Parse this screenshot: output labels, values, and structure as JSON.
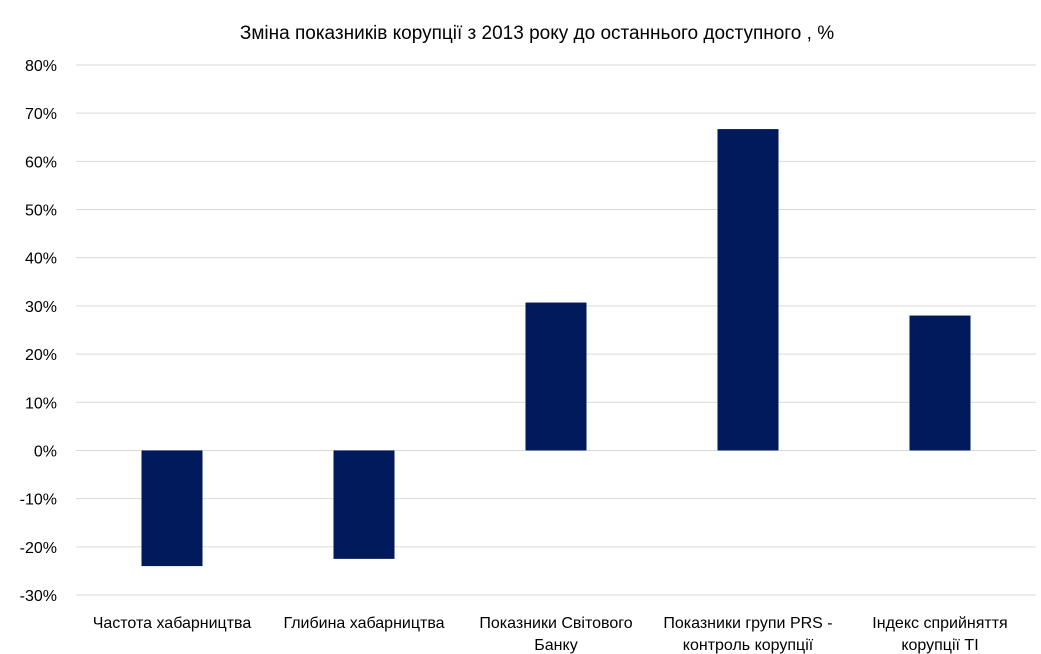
{
  "chart_data": {
    "type": "bar",
    "title": "Зміна показників корупції з 2013 року до останнього доступного , %",
    "xlabel": "",
    "ylabel": "",
    "ylim": [
      -30,
      80
    ],
    "yticks": [
      80,
      70,
      60,
      50,
      40,
      30,
      20,
      10,
      0,
      -10,
      -20,
      -30
    ],
    "ytick_labels": [
      "80%",
      "70%",
      "60%",
      "50%",
      "40%",
      "30%",
      "20%",
      "10%",
      "0%",
      "-10%",
      "-20%",
      "-30%"
    ],
    "grid": true,
    "legend": "none",
    "bar_color": "#001a5c",
    "categories": [
      [
        "Частота хабарництва"
      ],
      [
        "Глибина хабарництва"
      ],
      [
        "Показники Світового",
        "Банку"
      ],
      [
        "Показники групи PRS -",
        "контроль корупції"
      ],
      [
        "Індекс сприйняття",
        "корупції TI"
      ]
    ],
    "values": [
      -24,
      -22.5,
      30.7,
      66.7,
      28
    ]
  }
}
